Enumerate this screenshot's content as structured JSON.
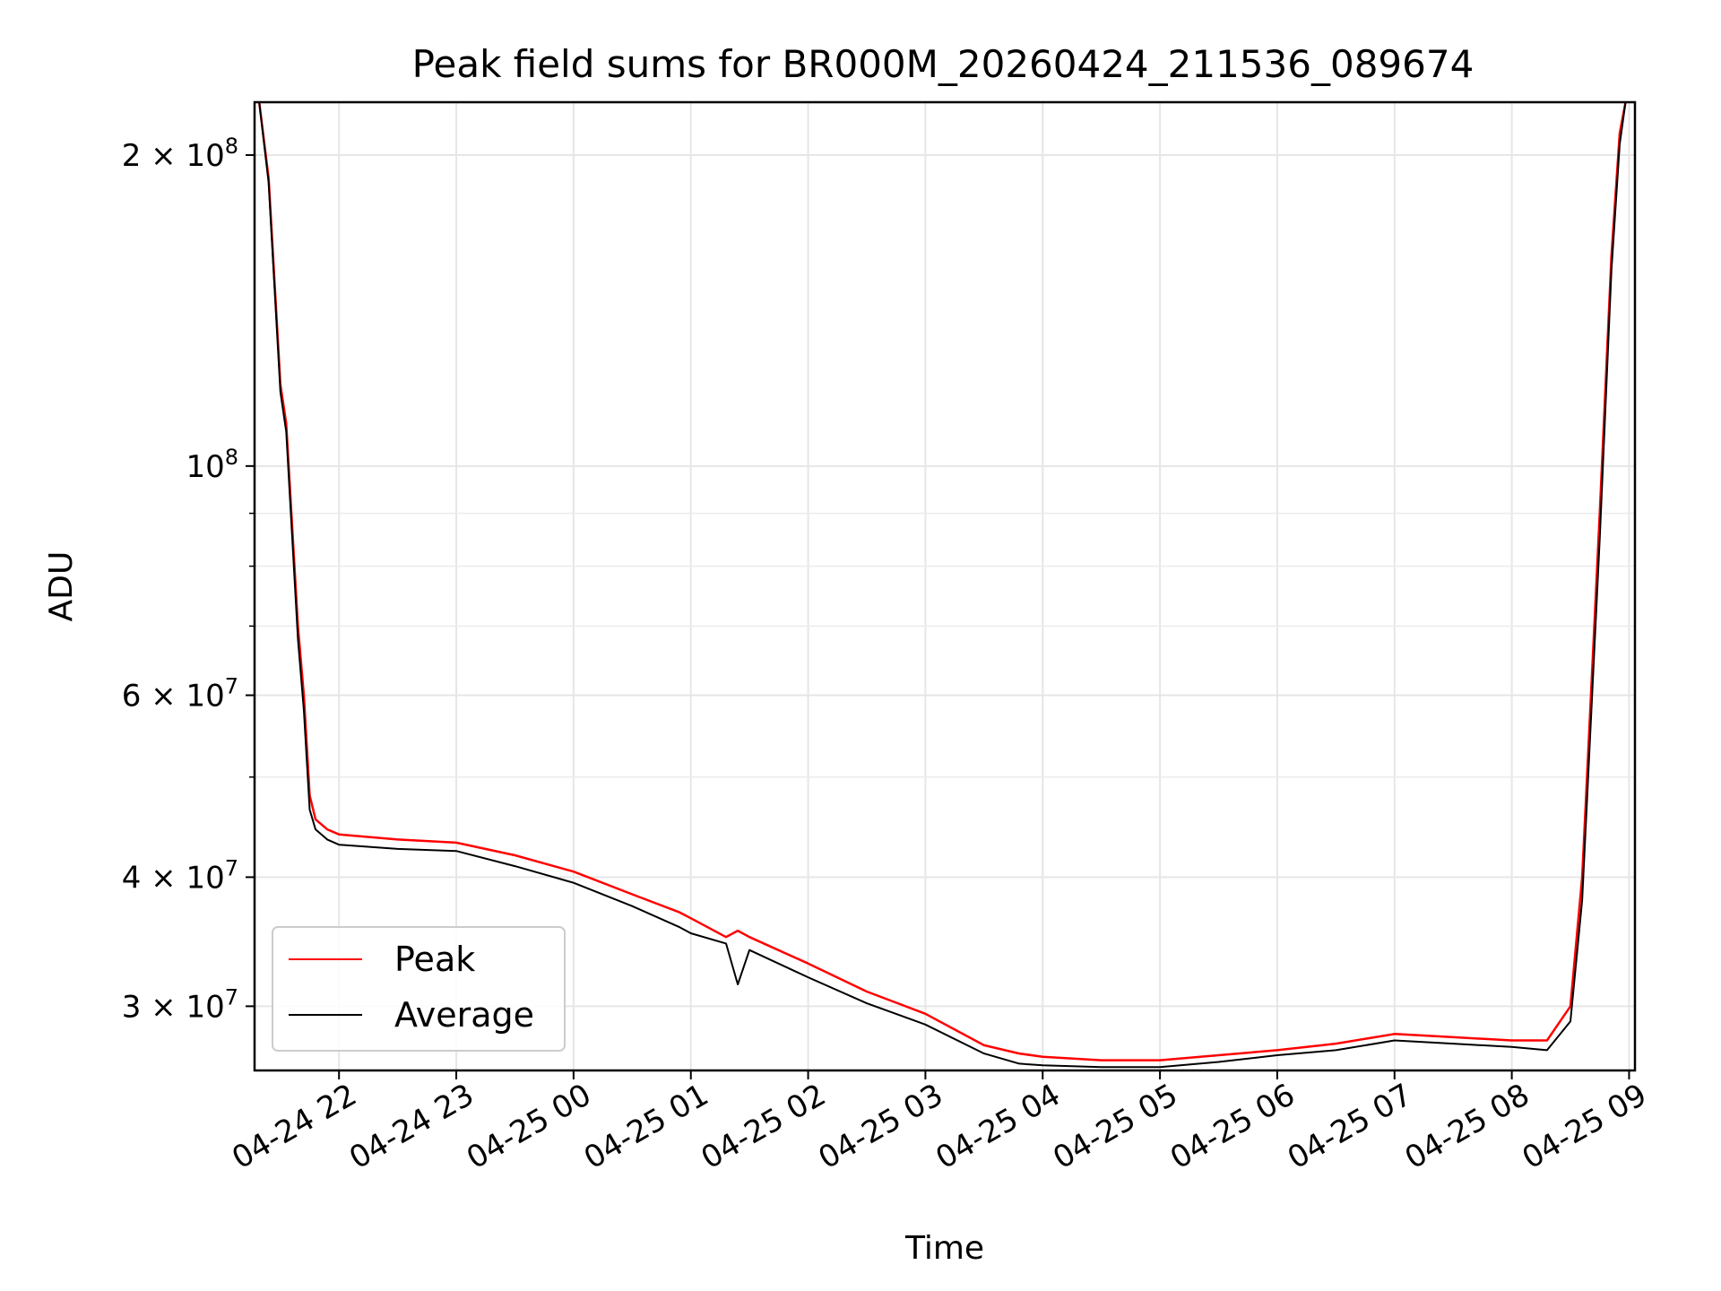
{
  "chart_data": {
    "type": "line",
    "title": "Peak field sums for BR000M_20260424_211536_089674",
    "xlabel": "Time",
    "ylabel": "ADU",
    "yscale": "log",
    "ylim": [
      26000000,
      225000000
    ],
    "xlim": [
      -0.72,
      11.05
    ],
    "x_unit": "hours since 04-24 22:00",
    "grid": true,
    "legend_position": "lower-left",
    "x_ticks": [
      {
        "value": 0,
        "label": "04-24 22"
      },
      {
        "value": 1,
        "label": "04-24 23"
      },
      {
        "value": 2,
        "label": "04-25 00"
      },
      {
        "value": 3,
        "label": "04-25 01"
      },
      {
        "value": 4,
        "label": "04-25 02"
      },
      {
        "value": 5,
        "label": "04-25 03"
      },
      {
        "value": 6,
        "label": "04-25 04"
      },
      {
        "value": 7,
        "label": "04-25 05"
      },
      {
        "value": 8,
        "label": "04-25 06"
      },
      {
        "value": 9,
        "label": "04-25 07"
      },
      {
        "value": 10,
        "label": "04-25 08"
      },
      {
        "value": 11,
        "label": "04-25 09"
      }
    ],
    "y_ticks": [
      {
        "value": 200000000,
        "mantissa": "2",
        "exponent": "8"
      },
      {
        "value": 100000000,
        "mantissa": "",
        "exponent": "8"
      },
      {
        "value": 60000000,
        "mantissa": "6",
        "exponent": "7"
      },
      {
        "value": 40000000,
        "mantissa": "4",
        "exponent": "7"
      },
      {
        "value": 30000000,
        "mantissa": "3",
        "exponent": "7"
      }
    ],
    "y_minor_ticks": [
      90000000,
      80000000,
      70000000,
      50000000
    ],
    "series": [
      {
        "name": "Peak",
        "color": "#ff0000",
        "x": [
          -0.68,
          -0.6,
          -0.5,
          -0.45,
          -0.35,
          -0.3,
          -0.25,
          -0.2,
          -0.1,
          0,
          0.5,
          1,
          1.5,
          2,
          2.5,
          2.9,
          3,
          3.3,
          3.4,
          3.5,
          4,
          4.5,
          5,
          5.5,
          5.8,
          6,
          6.5,
          7,
          7.5,
          8,
          8.5,
          9,
          9.5,
          10,
          10.3,
          10.5,
          10.6,
          10.75,
          10.85,
          10.92,
          10.97
        ],
        "values": [
          225000000,
          190000000,
          120000000,
          110000000,
          70000000,
          60000000,
          48000000,
          45500000,
          44500000,
          44000000,
          43500000,
          43200000,
          42000000,
          40500000,
          38500000,
          37000000,
          36500000,
          35000000,
          35500000,
          35000000,
          33000000,
          31000000,
          29500000,
          27500000,
          27000000,
          26800000,
          26600000,
          26600000,
          26900000,
          27200000,
          27600000,
          28200000,
          28000000,
          27800000,
          27800000,
          30000000,
          40000000,
          90000000,
          160000000,
          210000000,
          225000000
        ]
      },
      {
        "name": "Average",
        "color": "#000000",
        "x": [
          -0.68,
          -0.6,
          -0.5,
          -0.45,
          -0.35,
          -0.3,
          -0.25,
          -0.2,
          -0.1,
          0,
          0.5,
          1,
          1.5,
          2,
          2.5,
          2.9,
          3,
          3.3,
          3.4,
          3.5,
          4,
          4.5,
          5,
          5.5,
          5.8,
          6,
          6.5,
          7,
          7.5,
          8,
          8.5,
          9,
          9.5,
          10,
          10.3,
          10.5,
          10.6,
          10.75,
          10.85,
          10.92,
          10.97
        ],
        "values": [
          225000000,
          188000000,
          118000000,
          108000000,
          68000000,
          58000000,
          46500000,
          44500000,
          43500000,
          43000000,
          42600000,
          42400000,
          41000000,
          39500000,
          37500000,
          35800000,
          35300000,
          34500000,
          31500000,
          34000000,
          32000000,
          30200000,
          28800000,
          27000000,
          26400000,
          26300000,
          26200000,
          26200000,
          26500000,
          26900000,
          27200000,
          27800000,
          27600000,
          27400000,
          27200000,
          29000000,
          38000000,
          85000000,
          155000000,
          205000000,
          225000000
        ]
      }
    ]
  }
}
